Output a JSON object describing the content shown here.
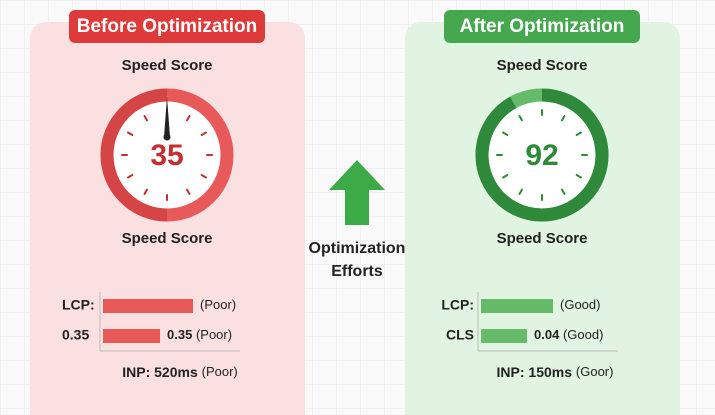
{
  "before": {
    "title": "Before Optimization",
    "label_top": "Speed Score",
    "score": "35",
    "label_bottom": "Speed Score",
    "rows": [
      {
        "label": "LCP:",
        "status": "(Poor)"
      },
      {
        "label": "0.35",
        "value": "0.35",
        "status": "(Poor)"
      }
    ],
    "summary": {
      "label": "INP: 520ms",
      "status": "(Poor)"
    }
  },
  "center": {
    "line1": "Optimization",
    "line2": "Efforts"
  },
  "after": {
    "title": "After Optimization",
    "label_top": "Speed Score",
    "score": "92",
    "label_bottom": "Speed Score",
    "rows": [
      {
        "label": "LCP:",
        "status": "(Good)"
      },
      {
        "label": "CLS",
        "value": "0.04",
        "status": "(Good)"
      }
    ],
    "summary": {
      "label": "INP: 150ms",
      "status": "(Goor)"
    }
  }
}
